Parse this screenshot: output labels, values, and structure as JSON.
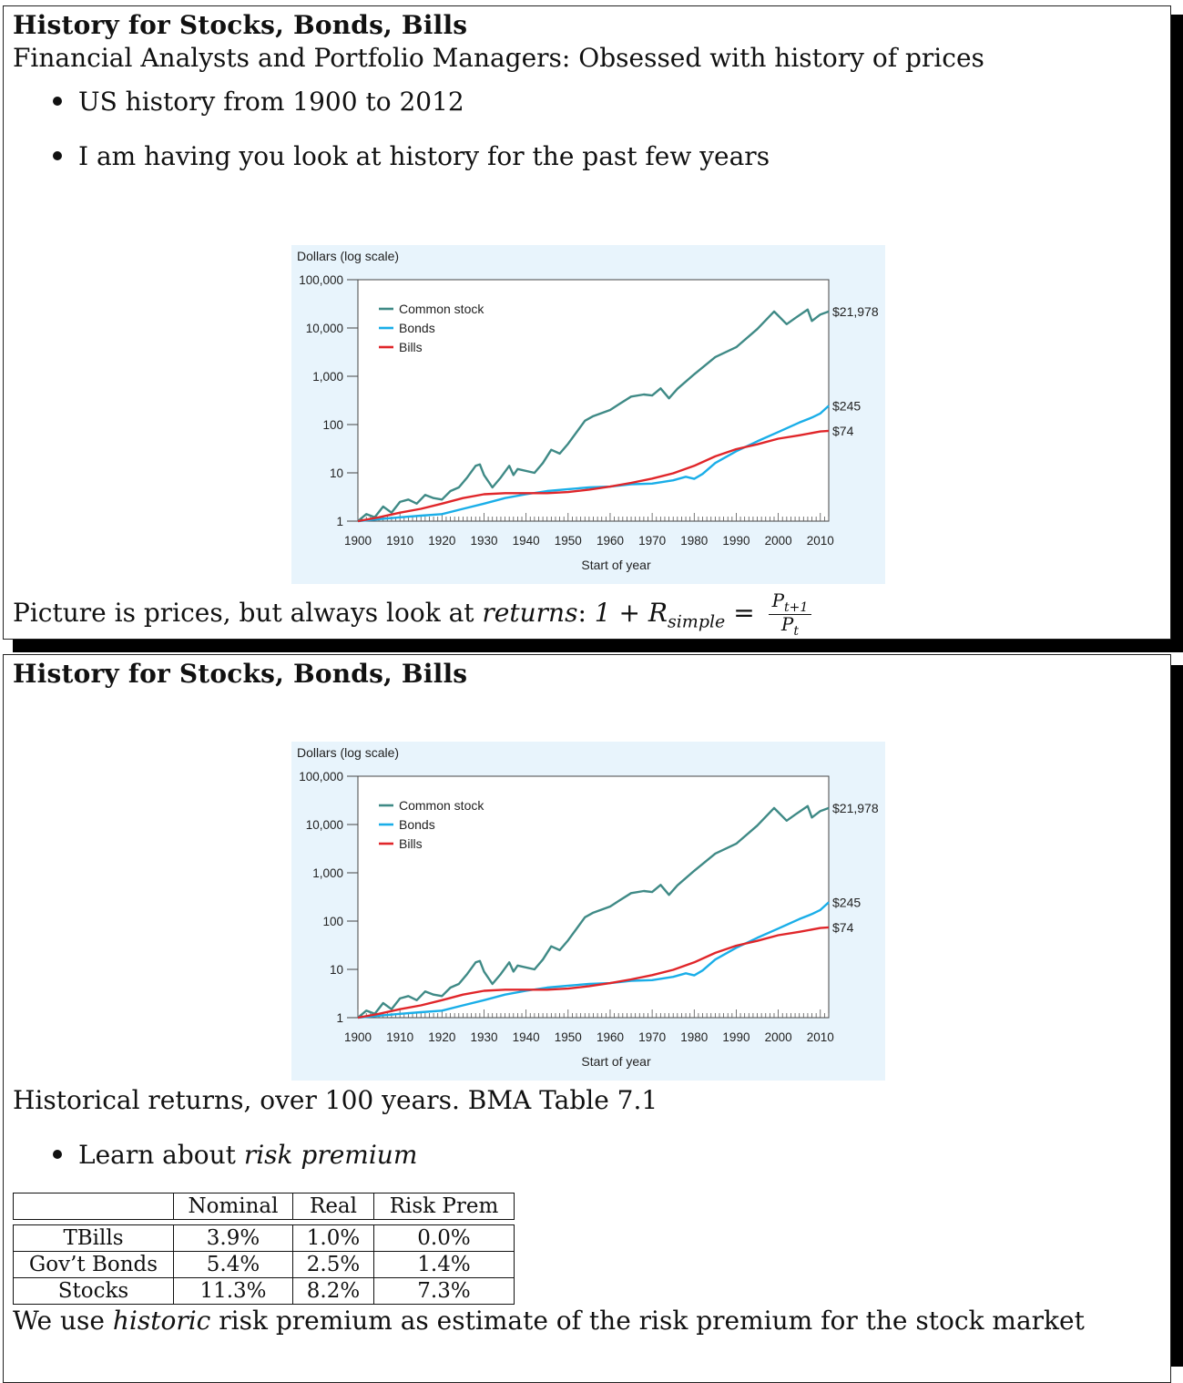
{
  "slide1": {
    "title": "History for Stocks, Bonds, Bills",
    "subtitle": "Financial Analysts and Portfolio Managers: Obsessed with history of prices",
    "bullets": [
      "US history from 1900 to 2012",
      "I am having you look at history for the past few years"
    ],
    "returns_text": "Picture is prices, but always look at",
    "returns_word": "returns",
    "formula_lhs": "1 + R",
    "formula_sub": "simple",
    "formula_num": "P",
    "formula_num_sub": "t+1",
    "formula_den": "P",
    "formula_den_sub": "t"
  },
  "slide2": {
    "title": "History for Stocks, Bonds, Bills",
    "caption": "Historical returns, over 100 years. BMA Table 7.1",
    "bullet_prefix": "Learn about",
    "bullet_italic": "risk premium",
    "closing_pre": "We use",
    "closing_italic": "historic",
    "closing_post": "risk premium as estimate of the risk premium for the stock market"
  },
  "table": {
    "headers": [
      "",
      "Nominal",
      "Real",
      "Risk Prem"
    ],
    "rows": [
      [
        "TBills",
        "3.9%",
        "1.0%",
        "0.0%"
      ],
      [
        "Gov’t Bonds",
        "5.4%",
        "2.5%",
        "1.4%"
      ],
      [
        "Stocks",
        "11.3%",
        "8.2%",
        "7.3%"
      ]
    ]
  },
  "chart_data": {
    "type": "line",
    "ylabel": "Dollars (log scale)",
    "xlabel": "Start of year",
    "yscale": "log",
    "ylim": [
      1,
      100000
    ],
    "xlim": [
      1900,
      2012
    ],
    "yticks": [
      "1",
      "10",
      "100",
      "1,000",
      "10,000",
      "100,000"
    ],
    "yticks_values": [
      1,
      10,
      100,
      1000,
      10000,
      100000
    ],
    "xticks": [
      "1900",
      "1910",
      "1920",
      "1930",
      "1940",
      "1950",
      "1960",
      "1970",
      "1980",
      "1990",
      "2000",
      "2010"
    ],
    "legend_position": "top-left",
    "colors": {
      "stock": "#3f8a86",
      "bonds": "#1aaee8",
      "bills": "#e0262a",
      "bg": "#e8f4fc"
    },
    "series": [
      {
        "name": "Common stock",
        "end_label": "$21,978",
        "x": [
          1900,
          1902,
          1904,
          1906,
          1908,
          1910,
          1912,
          1914,
          1916,
          1918,
          1920,
          1922,
          1924,
          1926,
          1928,
          1929,
          1930,
          1932,
          1934,
          1936,
          1937,
          1938,
          1942,
          1944,
          1946,
          1948,
          1950,
          1954,
          1956,
          1960,
          1962,
          1965,
          1968,
          1970,
          1972,
          1974,
          1976,
          1980,
          1985,
          1990,
          1995,
          1999,
          2000,
          2002,
          2004,
          2007,
          2008,
          2010,
          2012
        ],
        "y": [
          1,
          1.4,
          1.2,
          2.0,
          1.5,
          2.5,
          2.8,
          2.3,
          3.5,
          3.0,
          2.8,
          4.2,
          5.0,
          8.0,
          14,
          15,
          9,
          5,
          8,
          14,
          9,
          12,
          10,
          16,
          30,
          25,
          40,
          120,
          150,
          200,
          260,
          380,
          420,
          400,
          560,
          350,
          550,
          1100,
          2500,
          4000,
          9500,
          22000,
          18000,
          12000,
          16000,
          24000,
          14000,
          19000,
          21978
        ]
      },
      {
        "name": "Bonds",
        "end_label": "$245",
        "x": [
          1900,
          1905,
          1910,
          1915,
          1920,
          1925,
          1930,
          1935,
          1940,
          1945,
          1950,
          1955,
          1960,
          1965,
          1970,
          1975,
          1978,
          1980,
          1982,
          1985,
          1990,
          1995,
          2000,
          2005,
          2008,
          2010,
          2012
        ],
        "y": [
          1,
          1.1,
          1.2,
          1.3,
          1.4,
          1.8,
          2.3,
          3.0,
          3.6,
          4.2,
          4.6,
          5.0,
          5.2,
          5.8,
          6.0,
          7.0,
          8.3,
          7.5,
          9.5,
          16,
          28,
          45,
          70,
          110,
          140,
          170,
          245
        ]
      },
      {
        "name": "Bills",
        "end_label": "$74",
        "x": [
          1900,
          1905,
          1910,
          1915,
          1920,
          1925,
          1930,
          1935,
          1940,
          1945,
          1950,
          1955,
          1960,
          1965,
          1970,
          1975,
          1980,
          1985,
          1990,
          1995,
          2000,
          2005,
          2010,
          2012
        ],
        "y": [
          1,
          1.2,
          1.5,
          1.8,
          2.3,
          3.0,
          3.6,
          3.8,
          3.8,
          3.8,
          4.0,
          4.5,
          5.2,
          6.2,
          7.6,
          9.8,
          14,
          22,
          31,
          39,
          51,
          60,
          72,
          74
        ]
      }
    ]
  }
}
